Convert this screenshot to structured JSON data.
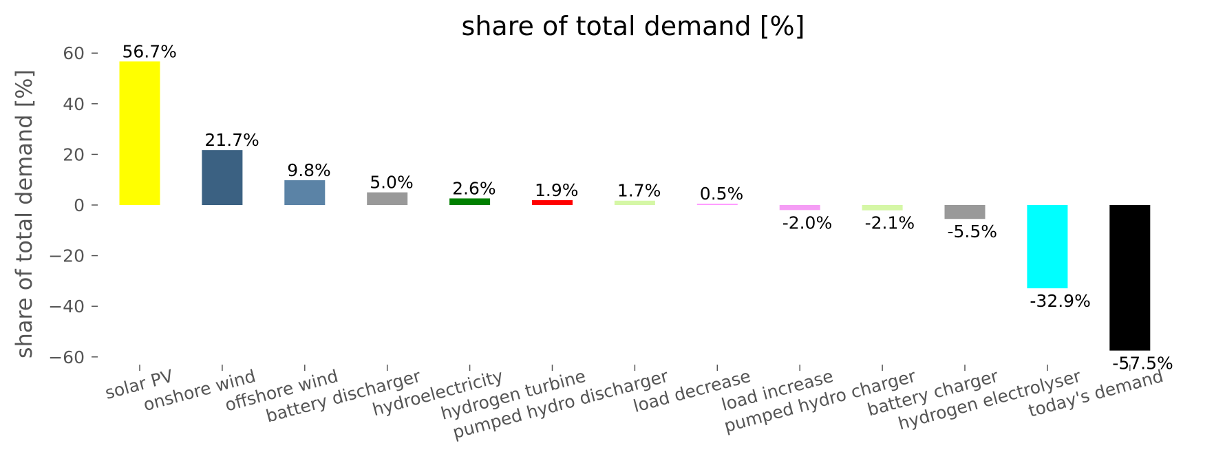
{
  "chart_data": {
    "type": "bar",
    "title": "share of total demand [%]",
    "xlabel": "",
    "ylabel": "share of total demand [%]",
    "ylim": [
      -65,
      62
    ],
    "yticks": [
      60,
      40,
      20,
      0,
      -20,
      -40,
      -60
    ],
    "ytick_labels": [
      "60",
      "40",
      "20",
      "0",
      "−20",
      "−40",
      "−60"
    ],
    "grid": false,
    "categories": [
      "solar PV",
      "onshore wind",
      "offshore wind",
      "battery discharger",
      "hydroelectricity",
      "hydrogen turbine",
      "pumped hydro discharger",
      "load decrease",
      "load increase",
      "pumped hydro charger",
      "battery charger",
      "hydrogen electrolyser",
      "today's demand"
    ],
    "values": [
      56.7,
      21.7,
      9.8,
      5.0,
      2.6,
      1.9,
      1.7,
      0.5,
      -2.0,
      -2.1,
      -5.5,
      -32.9,
      -57.5
    ],
    "data_labels": [
      "56.7%",
      "21.7%",
      "9.8%",
      "5.0%",
      "2.6%",
      "1.9%",
      "1.7%",
      "0.5%",
      "-2.0%",
      "-2.1%",
      "-5.5%",
      "-32.9%",
      "-57.5%"
    ],
    "colors": [
      "#ffff00",
      "#3b6182",
      "#5b83a6",
      "#999999",
      "#008000",
      "#ff0000",
      "#d5f7a6",
      "#ff99ff",
      "#f59df5",
      "#d5f7a6",
      "#999999",
      "#00ffff",
      "#000000"
    ]
  }
}
